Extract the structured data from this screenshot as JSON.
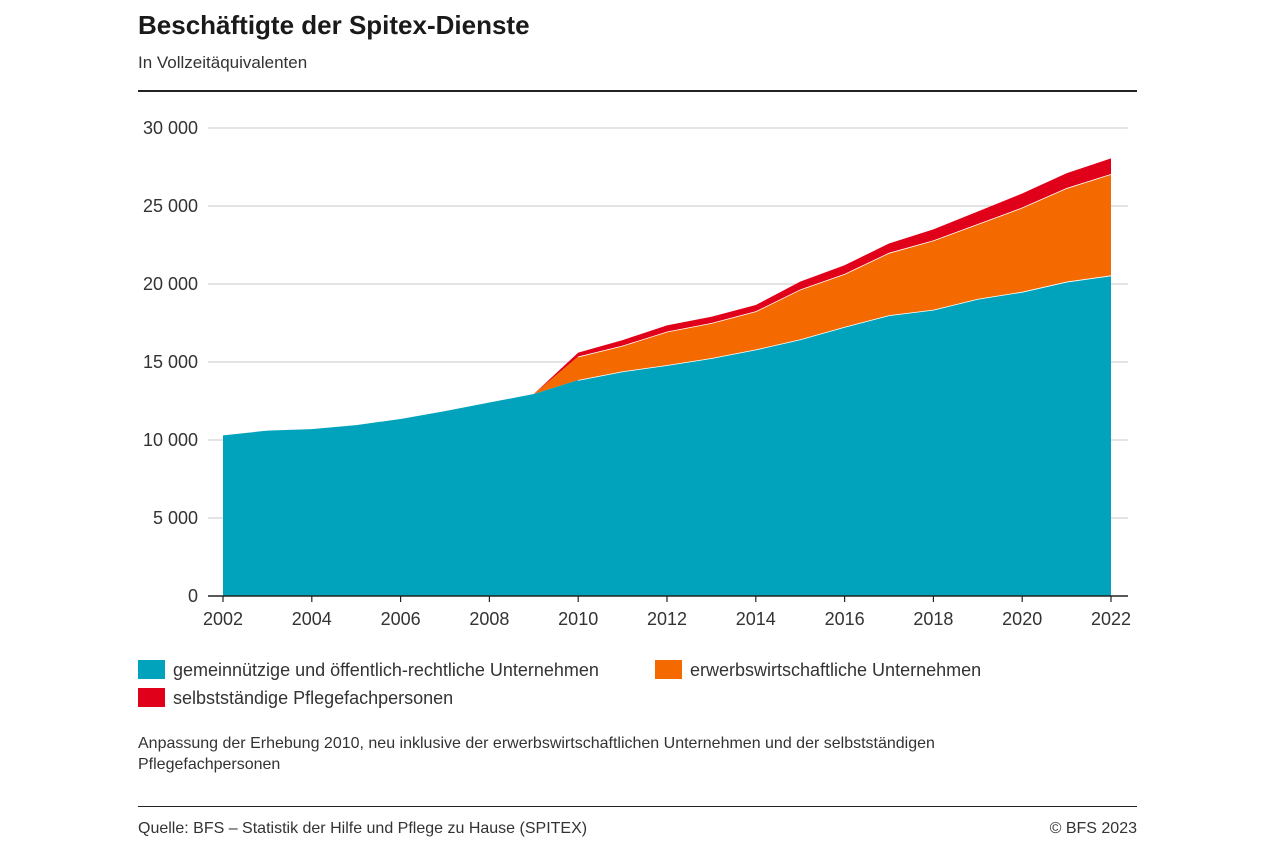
{
  "header": {
    "title": "Beschäftigte der Spitex-Dienste",
    "subtitle": "In Vollzeitäquivalenten"
  },
  "legend": {
    "item1": "gemeinnützige und öffentlich-rechtliche Unternehmen",
    "item2": "erwerbswirtschaftliche Unternehmen",
    "item3": "selbstständige Pflegefachpersonen"
  },
  "footer": {
    "note": "Anpassung der Erhebung 2010, neu inklusive der erwerbswirtschaftlichen Unternehmen und der selbstständigen Pflegefachpersonen",
    "source": "Quelle: BFS – Statistik der Hilfe und Pflege zu Hause (SPITEX)",
    "copyright": "© BFS 2023"
  },
  "colors": {
    "public": "#00a3bb",
    "commercial": "#f56a00",
    "independent": "#e1001a",
    "grid": "#c8c8c8",
    "axis": "#222222"
  },
  "chart_data": {
    "type": "area",
    "stacked": true,
    "x": [
      2002,
      2003,
      2004,
      2005,
      2006,
      2007,
      2008,
      2009,
      2010,
      2011,
      2012,
      2013,
      2014,
      2015,
      2016,
      2017,
      2018,
      2019,
      2020,
      2021,
      2022
    ],
    "x_tick_labels": [
      "2002",
      "2004",
      "2006",
      "2008",
      "2010",
      "2012",
      "2014",
      "2016",
      "2018",
      "2020",
      "2022"
    ],
    "y_tick_labels": [
      "0",
      "5 000",
      "10 000",
      "15 000",
      "20 000",
      "25 000",
      "30 000"
    ],
    "ylim": [
      0,
      30000
    ],
    "grid": true,
    "legend_position": "bottom",
    "series": [
      {
        "name": "gemeinnützige und öffentlich-rechtliche Unternehmen",
        "color": "#00a3bb",
        "values": [
          10300,
          10600,
          10700,
          10950,
          11350,
          11850,
          12400,
          12950,
          13850,
          14400,
          14800,
          15250,
          15800,
          16450,
          17250,
          18000,
          18350,
          19050,
          19500,
          20150,
          20550
        ]
      },
      {
        "name": "erwerbswirtschaftliche Unternehmen",
        "color": "#f56a00",
        "values": [
          0,
          0,
          0,
          0,
          0,
          0,
          0,
          0,
          1500,
          1650,
          2150,
          2250,
          2450,
          3200,
          3400,
          4000,
          4450,
          4800,
          5400,
          6000,
          6500
        ]
      },
      {
        "name": "selbstständige Pflegefachpersonen",
        "color": "#e1001a",
        "values": [
          0,
          0,
          0,
          0,
          0,
          0,
          0,
          0,
          250,
          350,
          400,
          400,
          400,
          500,
          550,
          600,
          700,
          800,
          900,
          950,
          1000
        ]
      }
    ]
  }
}
